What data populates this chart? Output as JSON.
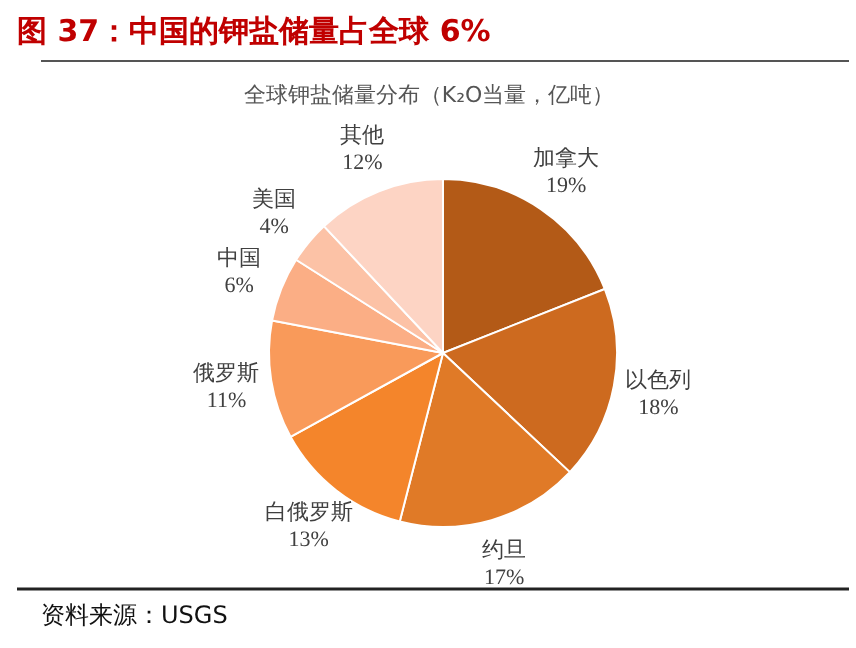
{
  "chart_data": {
    "type": "pie",
    "title": "图 37：中国的钾盐储量占全球 6%",
    "subtitle": "全球钾盐储量分布（K₂O当量，亿吨）",
    "categories": [
      "加拿大",
      "以色列",
      "约旦",
      "白俄罗斯",
      "俄罗斯",
      "中国",
      "美国",
      "其他"
    ],
    "values": [
      19,
      18,
      17,
      13,
      11,
      6,
      4,
      12
    ],
    "colors": [
      "#b35a17",
      "#cd6a1f",
      "#e07a27",
      "#f4852b",
      "#f99a5a",
      "#fbae85",
      "#fcc2a6",
      "#fdd4c4"
    ],
    "value_labels": [
      "19%",
      "18%",
      "17%",
      "13%",
      "11%",
      "6%",
      "4%",
      "12%"
    ],
    "annotations": [
      "资料来源：USGS"
    ]
  }
}
